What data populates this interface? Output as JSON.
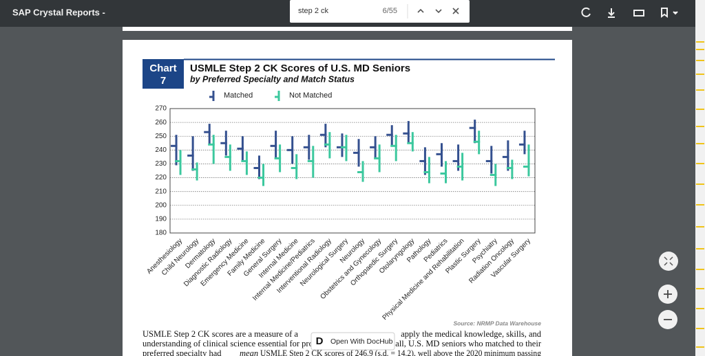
{
  "toolbar": {
    "title": "SAP Crystal Reports -"
  },
  "find_bar": {
    "query": "step 2 ck",
    "count": "6/55"
  },
  "chart_data": {
    "type": "range",
    "badge": "Chart",
    "badge_number": "7",
    "title": "USMLE Step 2 CK Scores of U.S. MD Seniors",
    "subtitle": "by Preferred Specialty and Match Status",
    "categories": [
      "Anesthesiology",
      "Child Neurology",
      "Dermatology",
      "Diagnostic Radiology",
      "Emergency Medicine",
      "Family Medicine",
      "General Surgery",
      "Internal Medicine",
      "Internal Medicine/Pediatrics",
      "Interventional Radiology",
      "Neurological Surgery",
      "Neurology",
      "Obstetrics and Gynecology",
      "Orthopaedic Surgery",
      "Otolaryngology",
      "Pathology",
      "Pediatrics",
      "Physical Medicine and Rehabilitation",
      "Plastic Surgery",
      "Psychiatry",
      "Radiation Oncology",
      "Vascular Surgery"
    ],
    "series": [
      {
        "name": "Matched",
        "color": "#34508f",
        "values": [
          243,
          236,
          253,
          245,
          241,
          227,
          243,
          240,
          242,
          251,
          242,
          238,
          242,
          251,
          252,
          232,
          237,
          232,
          256,
          232,
          235,
          244
        ],
        "low": [
          229,
          225,
          244,
          236,
          232,
          219,
          234,
          230,
          233,
          242,
          235,
          228,
          234,
          243,
          245,
          222,
          228,
          225,
          245,
          223,
          225,
          237
        ],
        "high": [
          251,
          250,
          259,
          254,
          250,
          236,
          254,
          250,
          251,
          259,
          252,
          248,
          250,
          258,
          261,
          242,
          245,
          244,
          262,
          243,
          247,
          254
        ]
      },
      {
        "name": "Not Matched",
        "color": "#3cc89e",
        "values": [
          232,
          226,
          244,
          235,
          232,
          220,
          234,
          227,
          232,
          244,
          242,
          224,
          234,
          243,
          245,
          224,
          223,
          228,
          246,
          222,
          227,
          228
        ],
        "low": [
          222,
          218,
          230,
          225,
          222,
          214,
          224,
          219,
          220,
          234,
          232,
          217,
          224,
          232,
          239,
          216,
          216,
          218,
          237,
          214,
          219,
          221
        ],
        "high": [
          240,
          231,
          251,
          244,
          239,
          230,
          244,
          237,
          243,
          253,
          251,
          232,
          244,
          251,
          253,
          235,
          232,
          238,
          254,
          230,
          233,
          244
        ]
      }
    ],
    "ylim": [
      180,
      270
    ],
    "yticks": [
      180,
      190,
      200,
      210,
      220,
      230,
      240,
      250,
      260,
      270
    ],
    "grid": true,
    "source": "Source: NRMP Data Warehouse"
  },
  "body": {
    "line1_left": "USMLE Step 2 CK scores are a measure of a",
    "line1_right": "apply the medical knowledge, skills, and",
    "line2_left": "understanding of clinical science essential for pro",
    "line2_right": "all, U.S. MD seniors who matched to their",
    "line3_a": "preferred specialty had",
    "line3_b": "mean",
    "line3_c": "USMLE Step 2 CK scores of 246.9 (s.d. = 14.2), well above the 2020 minimum passing"
  },
  "popup": {
    "label": "Open With DocHub"
  }
}
